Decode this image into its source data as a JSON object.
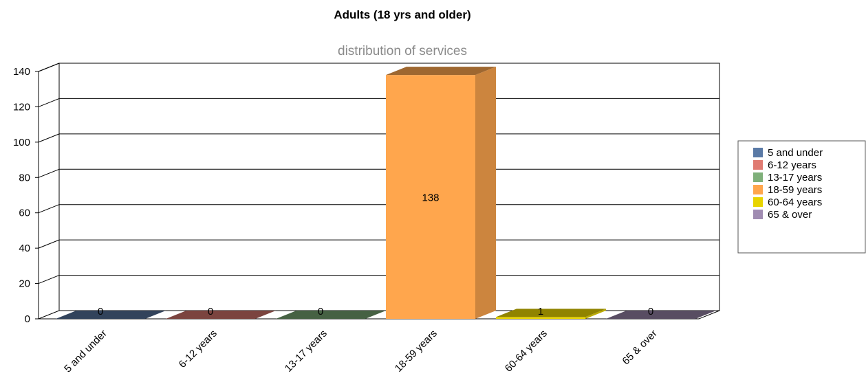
{
  "chart_data": {
    "type": "bar",
    "title": "Adults (18 yrs and older)",
    "subtitle": "distribution of services",
    "categories": [
      "5 and under",
      "6-12 years",
      "13-17 years",
      "18-59 years",
      "60-64 years",
      "65 & over"
    ],
    "values": [
      0,
      0,
      0,
      138,
      1,
      0
    ],
    "colors": [
      "#5a7aa6",
      "#e07b72",
      "#7fb07a",
      "#ffa64d",
      "#e8d400",
      "#a08cb2"
    ],
    "ylim": [
      0,
      140
    ],
    "yticks": [
      0,
      20,
      40,
      60,
      80,
      100,
      120,
      140
    ],
    "grid": true,
    "legend_position": "right"
  }
}
